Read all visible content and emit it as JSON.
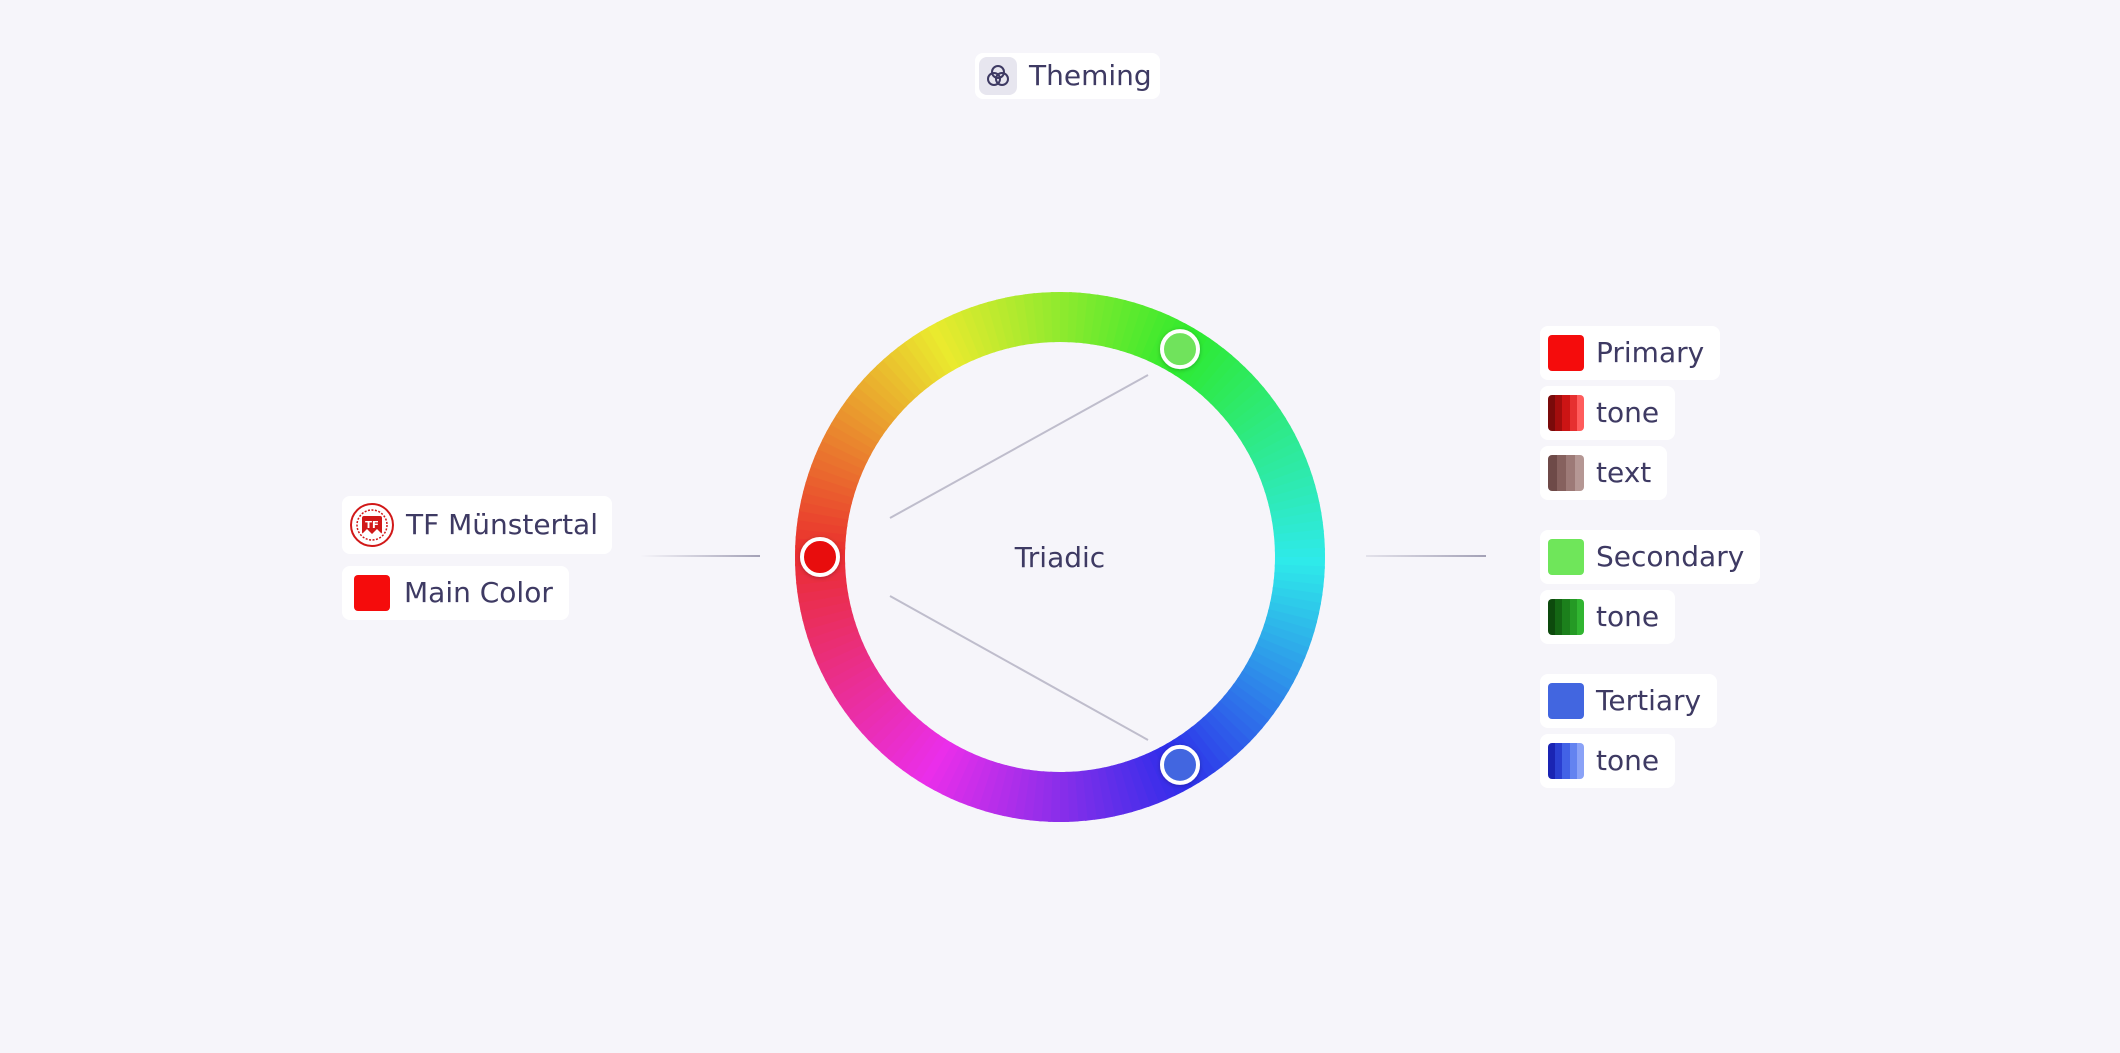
{
  "header": {
    "title": "Theming",
    "icon": "theming-circles-icon"
  },
  "brand": {
    "name": "TF Münstertal",
    "logo_text": "TF",
    "logo_icon": "club-crest-logo",
    "main_color_label": "Main Color",
    "main_color": "#f50c0c"
  },
  "wheel": {
    "scheme_label": "Triadic",
    "handles": [
      {
        "name": "main",
        "hue": 0,
        "color": "#e80b0b"
      },
      {
        "name": "secondary",
        "hue": 120,
        "color": "#6fe35b"
      },
      {
        "name": "tertiary",
        "hue": 240,
        "color": "#4266e0"
      }
    ]
  },
  "palette": {
    "primary": {
      "label": "Primary",
      "color": "#f50c0c",
      "tone_label": "tone",
      "tone": [
        "#7a0a0a",
        "#a30d0d",
        "#cc1414",
        "#e63030",
        "#ff5c5c"
      ],
      "text_label": "text",
      "text": [
        "#6e4a48",
        "#86615e",
        "#9d7a77",
        "#b59794"
      ]
    },
    "secondary": {
      "label": "Secondary",
      "color": "#6fe65a",
      "tone_label": "tone",
      "tone": [
        "#0d4a0d",
        "#146614",
        "#1c801c",
        "#259a25",
        "#31b531"
      ]
    },
    "tertiary": {
      "label": "Tertiary",
      "color": "#4266e0",
      "tone_label": "tone",
      "tone": [
        "#1a24b3",
        "#2a3fd1",
        "#4262e6",
        "#6383f0",
        "#8aa2f7"
      ]
    }
  }
}
